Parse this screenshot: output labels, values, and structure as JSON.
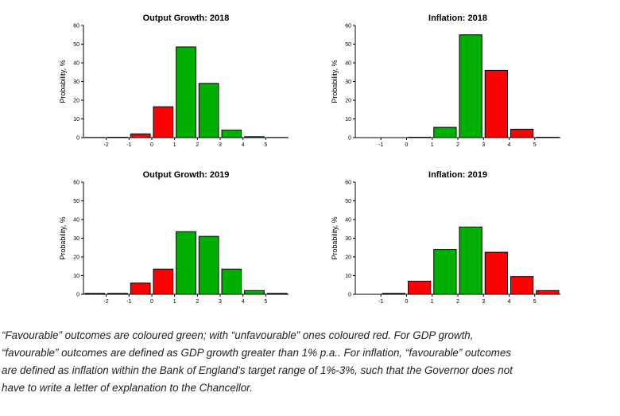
{
  "chart_data": [
    {
      "type": "bar",
      "title": "Output Growth: 2018",
      "ylabel": "Probability, %",
      "ylim": [
        0,
        60
      ],
      "yticks": [
        0,
        10,
        20,
        30,
        40,
        50,
        60
      ],
      "xlim": [
        -3,
        6
      ],
      "xticks": [
        -2,
        -1,
        0,
        1,
        2,
        3,
        4,
        5
      ],
      "categories": [
        "-2.5",
        "-1.5",
        "-0.5",
        "0.5",
        "1.5",
        "2.5",
        "3.5",
        "4.5",
        "5.5"
      ],
      "x": [
        -2.5,
        -1.5,
        -0.5,
        0.5,
        1.5,
        2.5,
        3.5,
        4.5,
        5.5
      ],
      "values": [
        0.1,
        0.2,
        2,
        16.5,
        48.5,
        29,
        4,
        0.5,
        0.1
      ],
      "colors": [
        "red",
        "red",
        "red",
        "red",
        "green",
        "green",
        "green",
        "green",
        "green"
      ],
      "grid": false
    },
    {
      "type": "bar",
      "title": "Inflation: 2018",
      "ylabel": "Probability, %",
      "ylim": [
        0,
        60
      ],
      "yticks": [
        0,
        10,
        20,
        30,
        40,
        50,
        60
      ],
      "xlim": [
        -2,
        6
      ],
      "xticks": [
        -1,
        0,
        1,
        2,
        3,
        4,
        5
      ],
      "categories": [
        "-1.5",
        "-0.5",
        "0.5",
        "1.5",
        "2.5",
        "3.5",
        "4.5",
        "5.5"
      ],
      "x": [
        -1.5,
        -0.5,
        0.5,
        1.5,
        2.5,
        3.5,
        4.5,
        5.5
      ],
      "values": [
        0,
        0,
        0.2,
        5.5,
        55,
        36,
        4.5,
        0.2
      ],
      "colors": [
        "red",
        "red",
        "red",
        "green",
        "green",
        "red",
        "red",
        "red"
      ],
      "grid": false
    },
    {
      "type": "bar",
      "title": "Output Growth: 2019",
      "ylabel": "Probability, %",
      "ylim": [
        0,
        60
      ],
      "yticks": [
        0,
        10,
        20,
        30,
        40,
        50,
        60
      ],
      "xlim": [
        -3,
        6
      ],
      "xticks": [
        -2,
        -1,
        0,
        1,
        2,
        3,
        4,
        5
      ],
      "categories": [
        "-2.5",
        "-1.5",
        "-0.5",
        "0.5",
        "1.5",
        "2.5",
        "3.5",
        "4.5",
        "5.5"
      ],
      "x": [
        -2.5,
        -1.5,
        -0.5,
        0.5,
        1.5,
        2.5,
        3.5,
        4.5,
        5.5
      ],
      "values": [
        0.5,
        0.5,
        6,
        13.5,
        33.5,
        31,
        13.5,
        2,
        0.5
      ],
      "colors": [
        "red",
        "red",
        "red",
        "red",
        "green",
        "green",
        "green",
        "green",
        "green"
      ],
      "grid": false
    },
    {
      "type": "bar",
      "title": "Inflation: 2019",
      "ylabel": "Probability, %",
      "ylim": [
        0,
        60
      ],
      "yticks": [
        0,
        10,
        20,
        30,
        40,
        50,
        60
      ],
      "xlim": [
        -2,
        6
      ],
      "xticks": [
        -1,
        0,
        1,
        2,
        3,
        4,
        5
      ],
      "categories": [
        "-1.5",
        "-0.5",
        "0.5",
        "1.5",
        "2.5",
        "3.5",
        "4.5",
        "5.5"
      ],
      "x": [
        -1.5,
        -0.5,
        0.5,
        1.5,
        2.5,
        3.5,
        4.5,
        5.5
      ],
      "values": [
        0,
        0.5,
        7,
        24,
        36,
        22.5,
        9.5,
        2
      ],
      "colors": [
        "red",
        "red",
        "red",
        "green",
        "green",
        "red",
        "red",
        "red"
      ],
      "grid": false
    }
  ],
  "colors": {
    "green": "#00b000",
    "red": "#ff0000"
  },
  "caption": {
    "line1": "“Favourable” outcomes are coloured green; with “unfavourable” ones coloured red. For GDP growth,",
    "line2": "“favourable” outcomes are defined as GDP growth greater than 1% p.a.. For inflation, “favourable” outcomes",
    "line3": "are defined as inflation within the Bank of England’s target range of 1%-3%, such that the Governor does not",
    "line4": "have to write a letter of explanation to the Chancellor."
  }
}
